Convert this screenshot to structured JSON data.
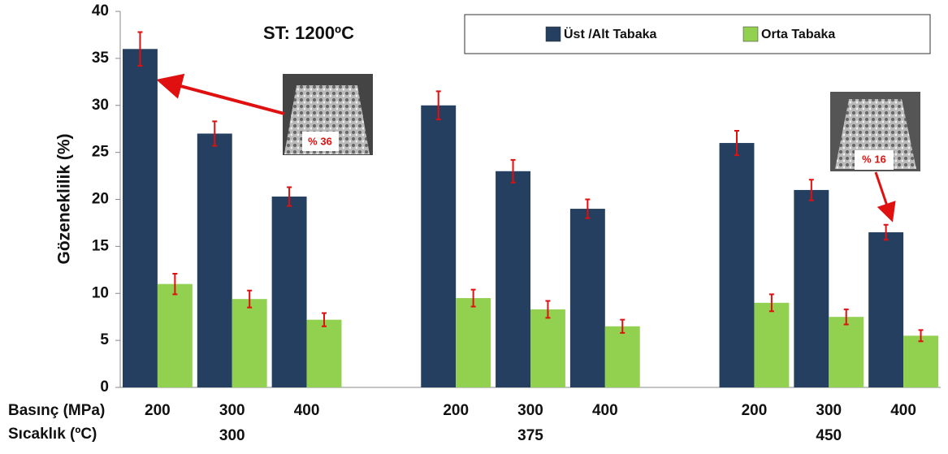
{
  "chart_data": {
    "type": "bar",
    "title": "ST: 1200ºC",
    "y_label": "Gözeneklilik (%)",
    "x_row_labels": [
      "Basınç (MPa)",
      "Sıcaklık (ºC)"
    ],
    "categories": [
      "200",
      "300",
      "400",
      null,
      "200",
      "300",
      "400",
      null,
      "200",
      "300",
      "400"
    ],
    "temperature_labels": [
      null,
      "300",
      null,
      null,
      null,
      "375",
      null,
      null,
      null,
      "450",
      null
    ],
    "series": [
      {
        "name": "Üst /Alt Tabaka",
        "color": "#243f60",
        "values": [
          36,
          27,
          20.3,
          null,
          30,
          23,
          19,
          null,
          26,
          21,
          16.5
        ],
        "errors": [
          1.8,
          1.3,
          1,
          null,
          1.5,
          1.2,
          1,
          null,
          1.3,
          1.1,
          0.8
        ]
      },
      {
        "name": "Orta Tabaka",
        "color": "#92d050",
        "values": [
          11,
          9.4,
          7.2,
          null,
          9.5,
          8.3,
          6.5,
          null,
          9,
          7.5,
          5.5
        ],
        "errors": [
          1.1,
          0.9,
          0.7,
          null,
          0.9,
          0.9,
          0.7,
          null,
          0.9,
          0.8,
          0.6
        ]
      }
    ],
    "error_color": "#e01010",
    "annotations": [
      "% 36",
      "% 16"
    ],
    "ylim": [
      0,
      40
    ],
    "yticks": [
      0,
      5,
      10,
      15,
      20,
      25,
      30,
      35,
      40
    ],
    "grid": false
  }
}
